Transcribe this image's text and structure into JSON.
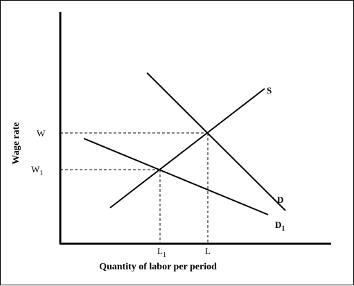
{
  "diagram": {
    "axes": {
      "ylabel": "Wage rate",
      "xlabel": "Quantity of labor per period"
    },
    "y_ticks": [
      {
        "label": "W",
        "sub": ""
      },
      {
        "label": "W",
        "sub": "1"
      }
    ],
    "x_ticks": [
      {
        "label": "L",
        "sub": "1"
      },
      {
        "label": "L",
        "sub": ""
      }
    ],
    "curves": {
      "supply": {
        "label": "S",
        "sub": ""
      },
      "demand": {
        "label": "D",
        "sub": ""
      },
      "demand_shifted": {
        "label": "D",
        "sub": "1"
      }
    },
    "colors": {
      "ink": "#000000",
      "background": "#ffffff"
    }
  }
}
